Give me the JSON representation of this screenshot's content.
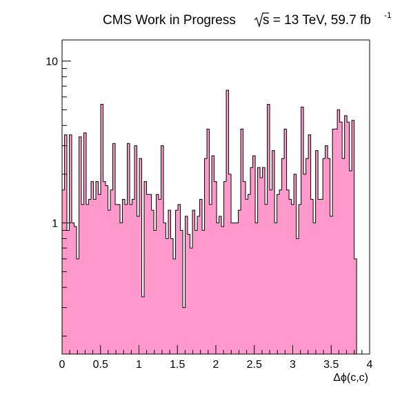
{
  "chart_data": {
    "type": "bar",
    "subtype": "histogram",
    "title": {
      "main": "CMS Work in Progress",
      "energy_prefix": "s = 13 TeV, 59.7 fb",
      "energy_exponent": "-1"
    },
    "xlabel": "Δϕ(c,c)",
    "ylabel": "",
    "xlim": [
      0,
      4
    ],
    "ylim": [
      0.155,
      13.5
    ],
    "yscale": "log",
    "grid": false,
    "legend": "none",
    "fill_color": "#ff99cc",
    "line_color": "#000000",
    "x_tick_labels": [
      "0",
      "0.5",
      "1",
      "1.5",
      "2",
      "2.5",
      "3",
      "3.5",
      "4"
    ],
    "x_tick_values": [
      0,
      0.5,
      1,
      1.5,
      2,
      2.5,
      3,
      3.5,
      4
    ],
    "y_tick_labels": [
      "1",
      "10"
    ],
    "y_tick_values": [
      1,
      10
    ],
    "bin_width": 0.0314,
    "values": [
      1.6,
      3.5,
      0.9,
      3.5,
      1.0,
      0.95,
      0.6,
      3.4,
      1.3,
      3.6,
      1.3,
      1.4,
      1.8,
      1.4,
      1.8,
      1.5,
      5.4,
      1.8,
      1.7,
      1.2,
      1.6,
      3.1,
      1.3,
      1.3,
      1.0,
      1.4,
      1.3,
      3.1,
      1.3,
      1.4,
      3.0,
      1.1,
      2.5,
      0.35,
      1.8,
      1.5,
      1.5,
      1.2,
      0.9,
      1.5,
      1.4,
      3.0,
      1.0,
      0.8,
      1.2,
      0.8,
      0.6,
      1.2,
      1.3,
      0.9,
      0.3,
      1.1,
      0.85,
      0.7,
      1.2,
      0.9,
      1.1,
      1.4,
      0.9,
      2.5,
      3.8,
      1.3,
      2.6,
      1.8,
      1.0,
      1.1,
      0.95,
      1.8,
      6.6,
      2.0,
      1.0,
      1.0,
      1.0,
      1.2,
      3.8,
      1.8,
      1.4,
      1.5,
      2.2,
      2.6,
      1.0,
      2.2,
      1.9,
      2.2,
      1.3,
      5.4,
      1.6,
      2.8,
      1.0,
      1.5,
      1.6,
      2.5,
      3.8,
      1.6,
      1.4,
      1.3,
      2.0,
      0.8,
      1.3,
      5.2,
      2.0,
      2.5,
      3.5,
      1.4,
      1.0,
      2.8,
      1.4,
      1.4,
      2.5,
      3.0,
      2.5,
      1.1,
      3.8,
      3.8,
      5.0,
      4.2,
      2.5,
      4.6,
      4.2,
      2.1,
      4.3,
      0.6
    ]
  }
}
